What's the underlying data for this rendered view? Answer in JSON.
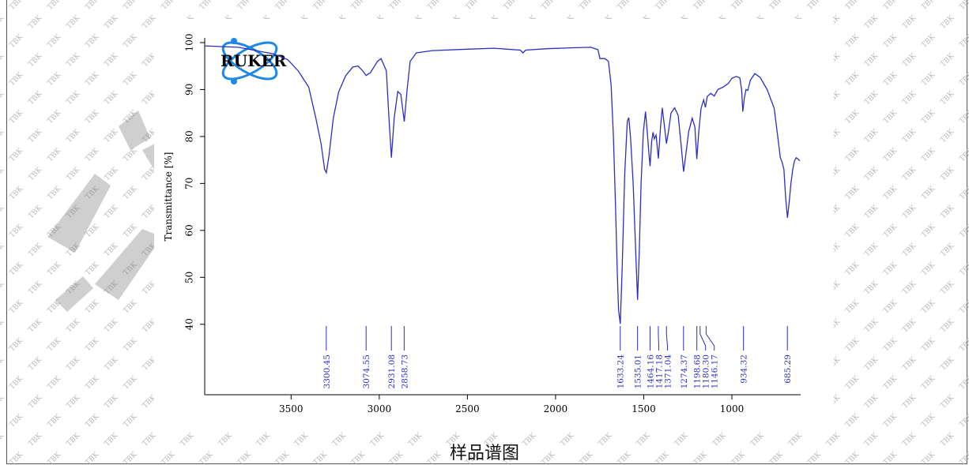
{
  "caption": "样品谱图",
  "logo": {
    "text": "RUKER",
    "icon": "atom-logo",
    "color": "#1e88e5"
  },
  "watermark": {
    "text": "TBK"
  },
  "colors": {
    "line": "#2b2fc0",
    "axis": "#000000",
    "peak_label": "#2b2fc0"
  },
  "chart_data": {
    "type": "line",
    "title": "",
    "xlabel": "",
    "ylabel": "Transmittance [%]",
    "xlim": [
      3990,
      610
    ],
    "ylim": [
      25,
      101
    ],
    "x_ticks": [
      3500,
      3000,
      2500,
      2000,
      1500,
      1000
    ],
    "y_ticks": [
      40,
      50,
      60,
      70,
      80,
      90,
      100
    ],
    "x_reversed": true,
    "grid": false,
    "series": [
      {
        "points": [
          [
            3990,
            99.3
          ],
          [
            3800,
            99.0
          ],
          [
            3600,
            97.6
          ],
          [
            3520,
            96.4
          ],
          [
            3460,
            94.0
          ],
          [
            3400,
            90.5
          ],
          [
            3360,
            84.0
          ],
          [
            3330,
            78.5
          ],
          [
            3310,
            73.0
          ],
          [
            3300,
            72.3
          ],
          [
            3285,
            76.0
          ],
          [
            3260,
            84.0
          ],
          [
            3230,
            89.5
          ],
          [
            3190,
            93.0
          ],
          [
            3150,
            94.8
          ],
          [
            3120,
            95.0
          ],
          [
            3095,
            94.0
          ],
          [
            3074,
            93.0
          ],
          [
            3050,
            93.6
          ],
          [
            3010,
            96.0
          ],
          [
            2990,
            96.6
          ],
          [
            2960,
            94.0
          ],
          [
            2945,
            84.0
          ],
          [
            2931,
            75.5
          ],
          [
            2915,
            84.0
          ],
          [
            2895,
            89.6
          ],
          [
            2878,
            89.0
          ],
          [
            2858,
            83.2
          ],
          [
            2842,
            90.0
          ],
          [
            2825,
            96.0
          ],
          [
            2790,
            97.8
          ],
          [
            2700,
            98.3
          ],
          [
            2500,
            98.6
          ],
          [
            2350,
            98.8
          ],
          [
            2200,
            98.4
          ],
          [
            2185,
            97.8
          ],
          [
            2170,
            98.4
          ],
          [
            2050,
            98.7
          ],
          [
            1900,
            98.9
          ],
          [
            1800,
            99.0
          ],
          [
            1760,
            98.5
          ],
          [
            1748,
            96.6
          ],
          [
            1720,
            96.6
          ],
          [
            1700,
            96.0
          ],
          [
            1685,
            91.0
          ],
          [
            1672,
            80.0
          ],
          [
            1660,
            65.0
          ],
          [
            1650,
            51.0
          ],
          [
            1643,
            43.0
          ],
          [
            1633,
            40.1
          ],
          [
            1622,
            52.0
          ],
          [
            1608,
            72.0
          ],
          [
            1593,
            83.3
          ],
          [
            1585,
            84.0
          ],
          [
            1575,
            80.0
          ],
          [
            1560,
            70.0
          ],
          [
            1545,
            55.0
          ],
          [
            1535,
            45.2
          ],
          [
            1525,
            56.0
          ],
          [
            1515,
            70.0
          ],
          [
            1502,
            81.0
          ],
          [
            1490,
            85.3
          ],
          [
            1480,
            81.0
          ],
          [
            1470,
            76.0
          ],
          [
            1464,
            73.7
          ],
          [
            1455,
            79.0
          ],
          [
            1447,
            80.9
          ],
          [
            1440,
            79.5
          ],
          [
            1430,
            80.3
          ],
          [
            1417,
            75.3
          ],
          [
            1405,
            82.0
          ],
          [
            1395,
            86.1
          ],
          [
            1385,
            83.0
          ],
          [
            1371,
            78.5
          ],
          [
            1360,
            81.0
          ],
          [
            1345,
            85.0
          ],
          [
            1325,
            86.1
          ],
          [
            1305,
            84.5
          ],
          [
            1290,
            79.0
          ],
          [
            1274,
            72.5
          ],
          [
            1262,
            76.0
          ],
          [
            1245,
            81.0
          ],
          [
            1225,
            83.9
          ],
          [
            1210,
            82.0
          ],
          [
            1199,
            75.2
          ],
          [
            1188,
            81.0
          ],
          [
            1175,
            86.0
          ],
          [
            1160,
            87.8
          ],
          [
            1150,
            86.2
          ],
          [
            1140,
            88.5
          ],
          [
            1120,
            89.2
          ],
          [
            1100,
            88.6
          ],
          [
            1080,
            90.0
          ],
          [
            1050,
            90.5
          ],
          [
            1020,
            91.3
          ],
          [
            1000,
            92.4
          ],
          [
            975,
            92.8
          ],
          [
            955,
            92.5
          ],
          [
            945,
            90.0
          ],
          [
            938,
            85.3
          ],
          [
            930,
            88.0
          ],
          [
            920,
            90.0
          ],
          [
            910,
            89.8
          ],
          [
            895,
            92.0
          ],
          [
            870,
            93.4
          ],
          [
            840,
            92.6
          ],
          [
            800,
            90.0
          ],
          [
            760,
            86.0
          ],
          [
            740,
            80.0
          ],
          [
            725,
            75.5
          ],
          [
            715,
            74.5
          ],
          [
            705,
            73.0
          ],
          [
            695,
            67.0
          ],
          [
            685,
            62.7
          ],
          [
            675,
            66.0
          ],
          [
            665,
            70.0
          ],
          [
            655,
            73.0
          ],
          [
            645,
            74.8
          ],
          [
            635,
            75.5
          ],
          [
            625,
            75.2
          ],
          [
            615,
            74.8
          ]
        ]
      }
    ],
    "peak_labels": [
      "3300.45",
      "3074.55",
      "2931.08",
      "2858.73",
      "1633.24",
      "1535.01",
      "1464.16",
      "1417.18",
      "1371.04",
      "1274.37",
      "1198.68",
      "1180.30",
      "1146.17",
      "934.32",
      "685.29"
    ],
    "peak_label_positions": [
      3300.45,
      3074.55,
      2931.08,
      2858.73,
      1633.24,
      1535.01,
      1464.16,
      1417.18,
      1371.04,
      1274.37,
      1198.68,
      1180.3,
      1146.17,
      934.32,
      685.29
    ]
  }
}
